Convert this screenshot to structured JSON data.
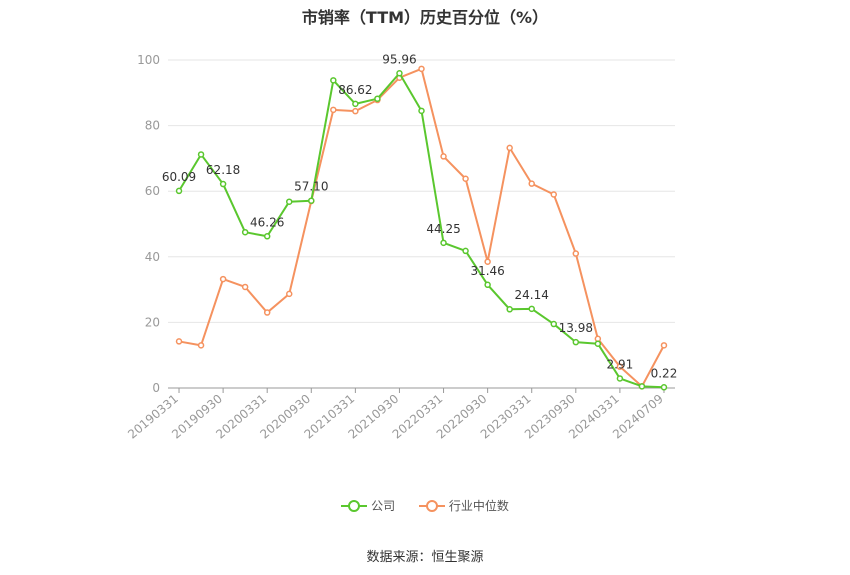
{
  "title": "市销率（TTM）历史百分位（%）",
  "source": "数据来源：恒生聚源",
  "colors": {
    "company": "#5ac72e",
    "industry": "#f5925f",
    "grid": "#e6e6e6",
    "axis": "#999999",
    "text": "#999999"
  },
  "legend": [
    {
      "label": "公司",
      "color": "#5ac72e"
    },
    {
      "label": "行业中位数",
      "color": "#f5925f"
    }
  ],
  "chart_data": {
    "type": "line",
    "title": "市销率（TTM）历史百分位（%）",
    "ylim": [
      0,
      100
    ],
    "yticks": [
      0,
      20,
      40,
      60,
      80,
      100
    ],
    "grid": true,
    "legend_position": "bottom",
    "x": [
      "20190331",
      "20190630",
      "20190930",
      "20191231",
      "20200331",
      "20200630",
      "20200930",
      "20201231",
      "20210331",
      "20210630",
      "20210930",
      "20211231",
      "20220331",
      "20220630",
      "20220930",
      "20221231",
      "20230331",
      "20230630",
      "20230930",
      "20231231",
      "20240331",
      "20240630",
      "20240709"
    ],
    "xtick_labels": [
      "20190331",
      "20190930",
      "20200331",
      "20200930",
      "20210331",
      "20210930",
      "20220331",
      "20220930",
      "20230331",
      "20230930",
      "20240331",
      "20240709"
    ],
    "series": [
      {
        "name": "公司",
        "color": "#5ac72e",
        "values": [
          60.09,
          71.2,
          62.18,
          47.5,
          46.26,
          56.8,
          57.1,
          93.8,
          86.62,
          88.2,
          95.96,
          84.5,
          44.25,
          41.8,
          31.46,
          24.0,
          24.14,
          19.5,
          13.98,
          13.5,
          2.91,
          0.5,
          0.22
        ],
        "labels": {
          "0": "60.09",
          "2": "62.18",
          "4": "46.26",
          "6": "57.10",
          "8": "86.62",
          "10": "95.96",
          "12": "44.25",
          "14": "31.46",
          "16": "24.14",
          "18": "13.98",
          "20": "2.91",
          "22": "0.22"
        }
      },
      {
        "name": "行业中位数",
        "color": "#f5925f",
        "values": [
          14.2,
          13.0,
          33.2,
          30.8,
          23.0,
          28.7,
          57.0,
          84.8,
          84.4,
          87.8,
          94.6,
          97.3,
          70.6,
          63.8,
          38.5,
          73.2,
          62.3,
          59.0,
          41.0,
          15.0,
          6.5,
          0.5,
          13.0
        ]
      }
    ]
  }
}
